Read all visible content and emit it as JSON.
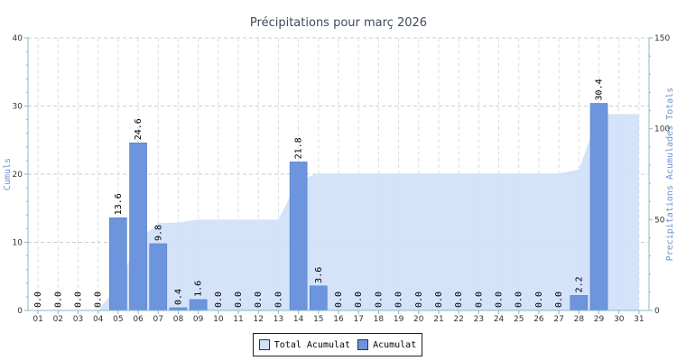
{
  "chart_data": {
    "type": "bar",
    "title": "Précipitations pour març 2026",
    "ylabel_left": "Cumuls",
    "ylabel_right": "Precipitations Acumulades Totals",
    "categories": [
      "01",
      "02",
      "03",
      "04",
      "05",
      "06",
      "07",
      "08",
      "09",
      "10",
      "11",
      "12",
      "13",
      "14",
      "15",
      "16",
      "17",
      "18",
      "19",
      "20",
      "21",
      "22",
      "23",
      "24",
      "25",
      "26",
      "27",
      "28",
      "29",
      "30",
      "31"
    ],
    "ylim_left": [
      0,
      40
    ],
    "ylim_right": [
      0,
      150
    ],
    "yticks_left": [
      0,
      10,
      20,
      30,
      40
    ],
    "yticks_right": [
      0,
      50,
      100,
      150
    ],
    "grid": true,
    "legend_position": "bottom-center",
    "series": [
      {
        "name": "Total Acumulat",
        "kind": "area",
        "axis": "right",
        "color": "#d2e0fa",
        "values": [
          0.0,
          0.0,
          0.0,
          0.0,
          13.6,
          38.2,
          48.0,
          48.4,
          50.0,
          50.0,
          50.0,
          50.0,
          50.0,
          71.8,
          75.4,
          75.4,
          75.4,
          75.4,
          75.4,
          75.4,
          75.4,
          75.4,
          75.4,
          75.4,
          75.4,
          75.4,
          75.4,
          77.6,
          108.0,
          108.0,
          108.0
        ]
      },
      {
        "name": "Acumulat",
        "kind": "bar",
        "axis": "left",
        "color": "#6d95dd",
        "values": [
          0.0,
          0.0,
          0.0,
          0.0,
          13.6,
          24.6,
          9.8,
          0.4,
          1.6,
          0.0,
          0.0,
          0.0,
          0.0,
          21.8,
          3.6,
          0.0,
          0.0,
          0.0,
          0.0,
          0.0,
          0.0,
          0.0,
          0.0,
          0.0,
          0.0,
          0.0,
          0.0,
          2.2,
          30.4,
          null,
          null
        ],
        "labels": [
          "0.0",
          "0.0",
          "0.0",
          "0.0",
          "13.6",
          "24.6",
          "9.8",
          "0.4",
          "1.6",
          "0.0",
          "0.0",
          "0.0",
          "0.0",
          "21.8",
          "3.6",
          "0.0",
          "0.0",
          "0.0",
          "0.0",
          "0.0",
          "0.0",
          "0.0",
          "0.0",
          "0.0",
          "0.0",
          "0.0",
          "0.0",
          "2.2",
          "30.4",
          "",
          ""
        ]
      }
    ]
  },
  "legend": {
    "items": [
      {
        "label": "Total Acumulat",
        "color": "#d2e0fa"
      },
      {
        "label": "Acumulat",
        "color": "#6d95dd"
      }
    ]
  }
}
